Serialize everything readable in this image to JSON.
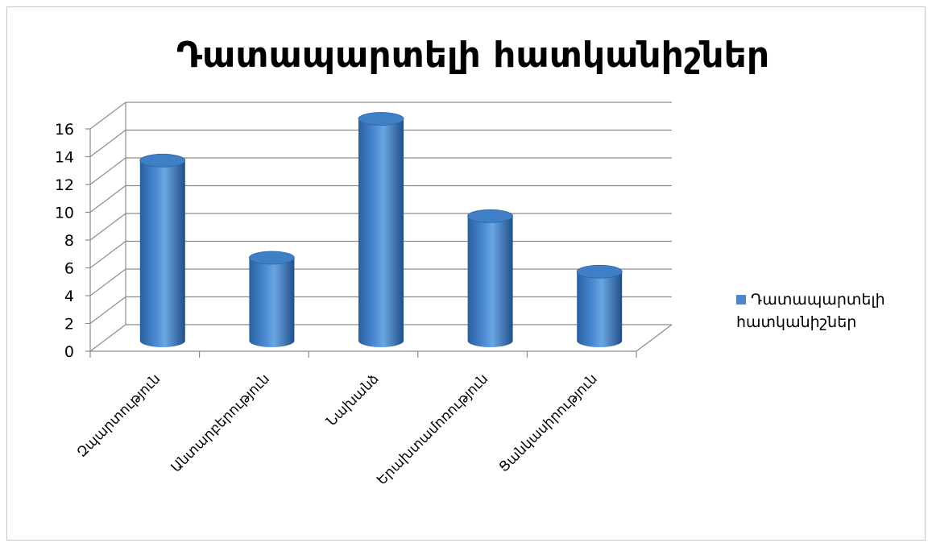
{
  "chart_data": {
    "type": "bar",
    "style": "3d-cylinder",
    "title": "Դատապարտելի հատկանիշներ",
    "categories": [
      "Զպարտություն",
      "Անտարբերություն",
      "Նախանձ",
      "Երախտամոռություն",
      "Ցանկասիրություն"
    ],
    "series": [
      {
        "name": "Դատապարտելի հատկանիշներ",
        "values": [
          13,
          6,
          16,
          9,
          5
        ],
        "color": "#4a86c8"
      }
    ],
    "ylim": [
      0,
      16
    ],
    "yticks": [
      0,
      2,
      4,
      6,
      8,
      10,
      12,
      14,
      16
    ],
    "grid": true,
    "legend_position": "right"
  }
}
